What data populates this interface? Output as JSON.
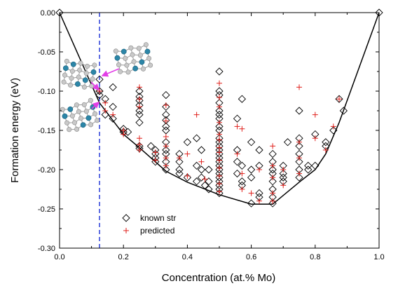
{
  "chart_data": {
    "type": "scatter",
    "xlabel": "Concentration (at.% Mo)",
    "ylabel": "Formation energy (eV)",
    "xlim": [
      0.0,
      1.0
    ],
    "ylim": [
      -0.3,
      0.0
    ],
    "x_ticks": [
      "0.0",
      "0.2",
      "0.4",
      "0.6",
      "0.8",
      "1.0"
    ],
    "y_ticks": [
      "0.00",
      "-0.05",
      "-0.10",
      "-0.15",
      "-0.20",
      "-0.25",
      "-0.30"
    ],
    "grid": false,
    "legend_position": "bottom-left",
    "reference_line": {
      "x": 0.125,
      "style": "dashed",
      "color": "#2a3fd8"
    },
    "colors": {
      "known": "#000000",
      "predicted": "#e0201c",
      "hull": "#000000",
      "annotation": "#e23ee6"
    },
    "series": [
      {
        "name": "known str",
        "marker": "diamond",
        "points": [
          [
            0.0,
            0.0
          ],
          [
            1.0,
            0.0
          ],
          [
            0.125,
            -0.085
          ],
          [
            0.125,
            -0.1
          ],
          [
            0.125,
            -0.105
          ],
          [
            0.143,
            -0.11
          ],
          [
            0.143,
            -0.13
          ],
          [
            0.167,
            -0.095
          ],
          [
            0.167,
            -0.12
          ],
          [
            0.167,
            -0.135
          ],
          [
            0.2,
            -0.148
          ],
          [
            0.2,
            -0.152
          ],
          [
            0.214,
            -0.152
          ],
          [
            0.25,
            -0.1
          ],
          [
            0.25,
            -0.107
          ],
          [
            0.25,
            -0.112
          ],
          [
            0.25,
            -0.118
          ],
          [
            0.25,
            -0.125
          ],
          [
            0.25,
            -0.13
          ],
          [
            0.25,
            -0.14
          ],
          [
            0.25,
            -0.17
          ],
          [
            0.25,
            -0.173
          ],
          [
            0.286,
            -0.17
          ],
          [
            0.3,
            -0.175
          ],
          [
            0.3,
            -0.18
          ],
          [
            0.3,
            -0.185
          ],
          [
            0.3,
            -0.19
          ],
          [
            0.333,
            -0.105
          ],
          [
            0.333,
            -0.12
          ],
          [
            0.333,
            -0.13
          ],
          [
            0.333,
            -0.137
          ],
          [
            0.333,
            -0.145
          ],
          [
            0.333,
            -0.15
          ],
          [
            0.333,
            -0.165
          ],
          [
            0.333,
            -0.175
          ],
          [
            0.333,
            -0.18
          ],
          [
            0.333,
            -0.19
          ],
          [
            0.333,
            -0.2
          ],
          [
            0.375,
            -0.18
          ],
          [
            0.375,
            -0.19
          ],
          [
            0.375,
            -0.2
          ],
          [
            0.375,
            -0.205
          ],
          [
            0.4,
            -0.165
          ],
          [
            0.4,
            -0.21
          ],
          [
            0.429,
            -0.16
          ],
          [
            0.429,
            -0.195
          ],
          [
            0.429,
            -0.215
          ],
          [
            0.444,
            -0.175
          ],
          [
            0.444,
            -0.2
          ],
          [
            0.444,
            -0.21
          ],
          [
            0.455,
            -0.22
          ],
          [
            0.467,
            -0.2
          ],
          [
            0.467,
            -0.215
          ],
          [
            0.467,
            -0.225
          ],
          [
            0.5,
            -0.075
          ],
          [
            0.5,
            -0.1
          ],
          [
            0.5,
            -0.105
          ],
          [
            0.5,
            -0.115
          ],
          [
            0.5,
            -0.125
          ],
          [
            0.5,
            -0.13
          ],
          [
            0.5,
            -0.135
          ],
          [
            0.5,
            -0.145
          ],
          [
            0.5,
            -0.15
          ],
          [
            0.5,
            -0.16
          ],
          [
            0.5,
            -0.165
          ],
          [
            0.5,
            -0.17
          ],
          [
            0.5,
            -0.175
          ],
          [
            0.5,
            -0.18
          ],
          [
            0.5,
            -0.185
          ],
          [
            0.5,
            -0.19
          ],
          [
            0.5,
            -0.195
          ],
          [
            0.5,
            -0.2
          ],
          [
            0.5,
            -0.205
          ],
          [
            0.5,
            -0.21
          ],
          [
            0.5,
            -0.215
          ],
          [
            0.5,
            -0.22
          ],
          [
            0.5,
            -0.225
          ],
          [
            0.5,
            -0.23
          ],
          [
            0.556,
            -0.135
          ],
          [
            0.556,
            -0.175
          ],
          [
            0.556,
            -0.19
          ],
          [
            0.556,
            -0.205
          ],
          [
            0.571,
            -0.11
          ],
          [
            0.571,
            -0.195
          ],
          [
            0.571,
            -0.215
          ],
          [
            0.571,
            -0.22
          ],
          [
            0.6,
            -0.165
          ],
          [
            0.6,
            -0.2
          ],
          [
            0.6,
            -0.21
          ],
          [
            0.6,
            -0.243
          ],
          [
            0.625,
            -0.175
          ],
          [
            0.625,
            -0.195
          ],
          [
            0.625,
            -0.23
          ],
          [
            0.625,
            -0.235
          ],
          [
            0.667,
            -0.18
          ],
          [
            0.667,
            -0.19
          ],
          [
            0.667,
            -0.2
          ],
          [
            0.667,
            -0.205
          ],
          [
            0.667,
            -0.215
          ],
          [
            0.667,
            -0.225
          ],
          [
            0.667,
            -0.235
          ],
          [
            0.667,
            -0.243
          ],
          [
            0.7,
            -0.195
          ],
          [
            0.7,
            -0.205
          ],
          [
            0.7,
            -0.21
          ],
          [
            0.7,
            -0.215
          ],
          [
            0.714,
            -0.165
          ],
          [
            0.75,
            -0.125
          ],
          [
            0.75,
            -0.16
          ],
          [
            0.75,
            -0.17
          ],
          [
            0.75,
            -0.18
          ],
          [
            0.75,
            -0.19
          ],
          [
            0.75,
            -0.2
          ],
          [
            0.75,
            -0.21
          ],
          [
            0.778,
            -0.195
          ],
          [
            0.778,
            -0.2
          ],
          [
            0.8,
            -0.155
          ],
          [
            0.8,
            -0.195
          ],
          [
            0.833,
            -0.165
          ],
          [
            0.833,
            -0.17
          ],
          [
            0.857,
            -0.15
          ],
          [
            0.875,
            -0.11
          ],
          [
            0.889,
            -0.125
          ]
        ]
      },
      {
        "name": "predicted",
        "marker": "plus",
        "points": [
          [
            0.125,
            -0.1
          ],
          [
            0.143,
            -0.115
          ],
          [
            0.143,
            -0.125
          ],
          [
            0.167,
            -0.13
          ],
          [
            0.2,
            -0.15
          ],
          [
            0.2,
            -0.155
          ],
          [
            0.25,
            -0.095
          ],
          [
            0.25,
            -0.11
          ],
          [
            0.25,
            -0.12
          ],
          [
            0.25,
            -0.16
          ],
          [
            0.25,
            -0.168
          ],
          [
            0.25,
            -0.175
          ],
          [
            0.3,
            -0.178
          ],
          [
            0.3,
            -0.188
          ],
          [
            0.333,
            -0.118
          ],
          [
            0.333,
            -0.138
          ],
          [
            0.333,
            -0.158
          ],
          [
            0.333,
            -0.17
          ],
          [
            0.333,
            -0.185
          ],
          [
            0.333,
            -0.195
          ],
          [
            0.375,
            -0.185
          ],
          [
            0.4,
            -0.18
          ],
          [
            0.4,
            -0.208
          ],
          [
            0.429,
            -0.13
          ],
          [
            0.444,
            -0.19
          ],
          [
            0.455,
            -0.212
          ],
          [
            0.5,
            -0.09
          ],
          [
            0.5,
            -0.108
          ],
          [
            0.5,
            -0.12
          ],
          [
            0.5,
            -0.14
          ],
          [
            0.5,
            -0.155
          ],
          [
            0.5,
            -0.162
          ],
          [
            0.5,
            -0.172
          ],
          [
            0.5,
            -0.178
          ],
          [
            0.5,
            -0.188
          ],
          [
            0.5,
            -0.198
          ],
          [
            0.5,
            -0.208
          ],
          [
            0.5,
            -0.218
          ],
          [
            0.5,
            -0.228
          ],
          [
            0.556,
            -0.145
          ],
          [
            0.556,
            -0.18
          ],
          [
            0.571,
            -0.148
          ],
          [
            0.571,
            -0.205
          ],
          [
            0.571,
            -0.225
          ],
          [
            0.6,
            -0.23
          ],
          [
            0.625,
            -0.2
          ],
          [
            0.625,
            -0.24
          ],
          [
            0.667,
            -0.17
          ],
          [
            0.667,
            -0.195
          ],
          [
            0.667,
            -0.21
          ],
          [
            0.667,
            -0.23
          ],
          [
            0.667,
            -0.24
          ],
          [
            0.7,
            -0.2
          ],
          [
            0.7,
            -0.22
          ],
          [
            0.75,
            -0.095
          ],
          [
            0.75,
            -0.165
          ],
          [
            0.75,
            -0.185
          ],
          [
            0.75,
            -0.205
          ],
          [
            0.8,
            -0.13
          ],
          [
            0.8,
            -0.16
          ],
          [
            0.833,
            -0.175
          ],
          [
            0.857,
            -0.145
          ],
          [
            0.875,
            -0.11
          ]
        ]
      }
    ],
    "convex_hull": [
      [
        0.0,
        0.0
      ],
      [
        0.125,
        -0.115
      ],
      [
        0.2,
        -0.155
      ],
      [
        0.25,
        -0.172
      ],
      [
        0.333,
        -0.202
      ],
      [
        0.4,
        -0.216
      ],
      [
        0.5,
        -0.232
      ],
      [
        0.6,
        -0.244
      ],
      [
        0.667,
        -0.244
      ],
      [
        0.75,
        -0.216
      ],
      [
        0.8,
        -0.2
      ],
      [
        0.833,
        -0.18
      ],
      [
        0.875,
        -0.14
      ],
      [
        1.0,
        0.0
      ]
    ]
  }
}
